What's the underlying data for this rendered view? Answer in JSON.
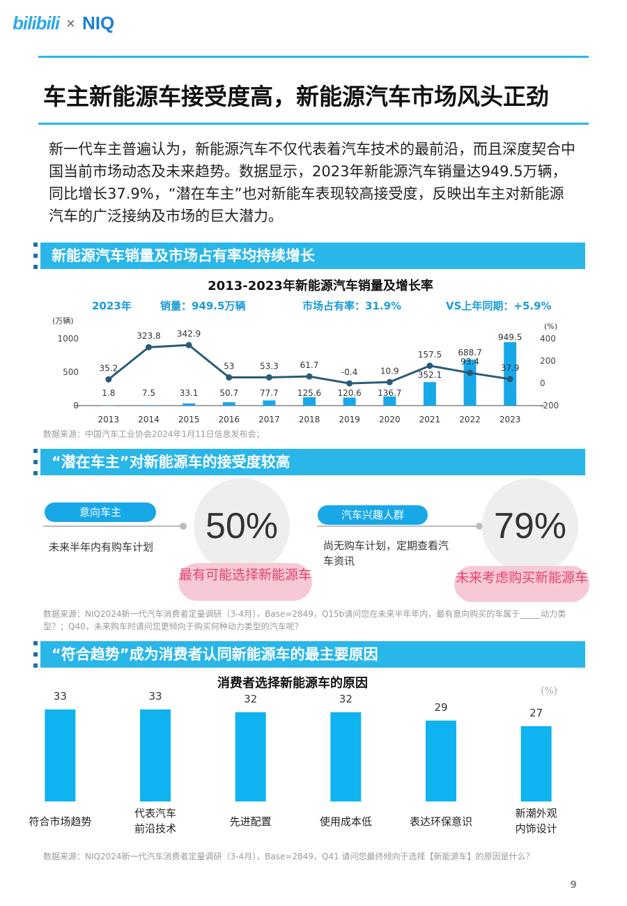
{
  "header": {
    "brand_left": "bilibili",
    "brand_sep": "×",
    "brand_right": "NIQ"
  },
  "title": "车主新能源车接受度高，新能源汽车市场风头正劲",
  "intro": "新一代车主普遍认为，新能源汽车不仅代表着汽车技术的最前沿，而且深度契合中国当前市场动态及未来趋势。数据显示，2023年新能源汽车销量达949.5万辆，同比增长37.9%，“潜在车主”也对新能车表现较高接受度，反映出车主对新能源汽车的广泛接纳及市场的巨大潜力。",
  "section1": {
    "heading": "新能源汽车销量及市场占有率均持续增长",
    "chart_title": "2013-2023年新能源汽车销量及增长率",
    "kpi": {
      "year": "2023年",
      "sales": "销量：949.5万辆",
      "share": "市场占有率：31.9%",
      "yoy": "VS上年同期：+5.9%"
    },
    "source": "数据来源：中国汽车工业协会2024年1月11日信息发布会；"
  },
  "section2": {
    "heading": "“潜在车主”对新能源车的接受度较高",
    "left": {
      "pill": "意向车主",
      "desc": "未来半年内有购车计划",
      "pct": "50%",
      "note": "最有可能选择新能源车"
    },
    "right": {
      "pill": "汽车兴趣人群",
      "desc": "尚无购车计划，定期查看汽车资讯",
      "pct": "79%",
      "note": "未来考虑购买新能源车"
    },
    "source": "数据来源：NIQ2024新一代汽车消费者定量调研（3-4月），Base=2849，Q15b请问您在未来半年年内，最有意向购买的车属于_____动力类型？；Q40，未来购车时请问您更倾向于购买何种动力类型的汽车呢？"
  },
  "section3": {
    "heading": "“符合趋势”成为消费者认同新能源车的最主要原因",
    "chart_title": "消费者选择新能源车的原因",
    "unit": "(%)",
    "source": "数据来源：NIQ2024新一代汽车消费者定量调研（3-4月），Base=2849，Q41 请问您最终倾向于选择【新能源车】的原因是什么？"
  },
  "page_number": "9",
  "chart_data": [
    {
      "type": "bar+line",
      "title": "2013-2023年新能源汽车销量及增长率",
      "x": [
        "2013",
        "2014",
        "2015",
        "2016",
        "2017",
        "2018",
        "2019",
        "2020",
        "2021",
        "2022",
        "2023"
      ],
      "series": [
        {
          "name": "销量",
          "type": "bar",
          "axis": "left",
          "values": [
            1.8,
            7.5,
            33.1,
            50.7,
            77.7,
            125.6,
            120.6,
            136.7,
            352.1,
            688.7,
            949.5
          ],
          "labels": [
            "1.8",
            "7.5",
            "33.1",
            "50.7",
            "77.7",
            "125.6",
            "120.6",
            "136.7",
            "352.1",
            "688.7",
            "949.5"
          ]
        },
        {
          "name": "增长率",
          "type": "line",
          "axis": "right",
          "values": [
            35.2,
            323.8,
            342.9,
            53,
            53.3,
            61.7,
            -0.4,
            10.9,
            157.5,
            93.4,
            37.9
          ],
          "labels": [
            "35.2",
            "323.8",
            "342.9",
            "53",
            "53.3",
            "61.7",
            "-0.4",
            "10.9",
            "157.5",
            "93.4",
            "37.9"
          ]
        }
      ],
      "ylabel_left": "(万辆)",
      "ylabel_right": "(%)",
      "ylim_left": [
        0,
        1000
      ],
      "ylim_right": [
        -200,
        400
      ],
      "yticks_left": [
        "0",
        "500",
        "1000"
      ],
      "yticks_right": [
        "-200",
        "0",
        "200",
        "400"
      ],
      "colors": {
        "bar": "#18a8e8",
        "line": "#2b5a78"
      }
    },
    {
      "type": "bar",
      "title": "消费者选择新能源车的原因",
      "categories": [
        "符合市场趋势",
        "代表汽车前沿技术",
        "先进配置",
        "使用成本低",
        "表达环保意识",
        "新潮外观内饰设计"
      ],
      "category_lines": [
        [
          "符合市场趋势"
        ],
        [
          "代表汽车",
          "前沿技术"
        ],
        [
          "先进配置"
        ],
        [
          "使用成本低"
        ],
        [
          "表达环保意识"
        ],
        [
          "新潮外观",
          "内饰设计"
        ]
      ],
      "values": [
        33,
        33,
        32,
        32,
        29,
        27
      ],
      "unit": "(%)",
      "ylim": [
        0,
        40
      ],
      "colors": {
        "bar": "#0fb3ef"
      }
    }
  ]
}
